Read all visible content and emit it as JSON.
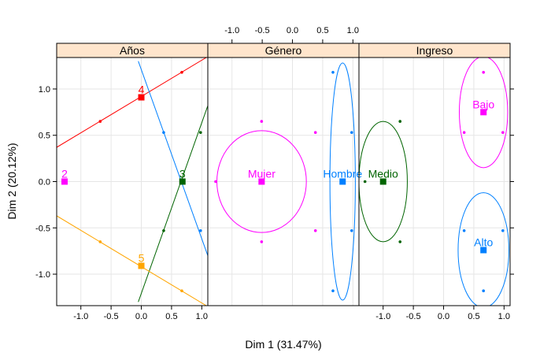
{
  "chart_data": {
    "type": "scatter",
    "xlabel": "Dim 1 (31.47%)",
    "ylabel": "Dim 2 (20.12%)",
    "xlim": [
      -1.4,
      1.1
    ],
    "ylim": [
      -1.34,
      1.34
    ],
    "x_ticks": [
      -1.0,
      -0.5,
      0.0,
      0.5,
      1.0
    ],
    "x_tick_labels": [
      "-1.0",
      "-0.5",
      "0.0",
      "0.5",
      "1.0"
    ],
    "y_ticks": [
      -1.0,
      -0.5,
      0.0,
      0.5,
      1.0
    ],
    "y_tick_labels": [
      "-1.0",
      "-0.5",
      "0.0",
      "0.5",
      "1.0"
    ],
    "grid": true,
    "colors": {
      "red": "#FF0000",
      "blue": "#0080FF",
      "green": "#006400",
      "magenta": "#FF00FF",
      "orange": "#FFA500",
      "strip": "#FFE5CC",
      "grid": "#E6E6E6"
    },
    "panels": [
      {
        "strip": "Años",
        "points": [
          {
            "label": "2",
            "x": -1.27,
            "y": 0.0,
            "color": "#FF00FF"
          },
          {
            "label": "4",
            "x": 0.0,
            "y": 0.91,
            "color": "#FF0000"
          },
          {
            "label": "3",
            "x": 0.68,
            "y": 0.0,
            "color": "#006400"
          },
          {
            "label": "5",
            "x": 0.0,
            "y": -0.91,
            "color": "#FFA500"
          }
        ],
        "lines": [
          {
            "color": "#FF0000",
            "from": [
              -1.4,
              0.37
            ],
            "to": [
              1.1,
              1.35
            ],
            "dots": [
              [
                -0.68,
                0.65
              ],
              [
                0.67,
                1.18
              ]
            ]
          },
          {
            "color": "#0080FF",
            "from": [
              -0.05,
              1.3
            ],
            "to": [
              1.1,
              -0.8
            ],
            "dots": [
              [
                0.37,
                0.53
              ],
              [
                0.98,
                -0.53
              ]
            ]
          },
          {
            "color": "#006400",
            "from": [
              -0.05,
              -1.3
            ],
            "to": [
              1.1,
              0.82
            ],
            "dots": [
              [
                0.37,
                -0.53
              ],
              [
                0.98,
                0.53
              ]
            ]
          },
          {
            "color": "#FFA500",
            "from": [
              -1.4,
              -0.37
            ],
            "to": [
              1.1,
              -1.35
            ],
            "dots": [
              [
                -0.68,
                -0.65
              ],
              [
                0.67,
                -1.18
              ]
            ]
          }
        ],
        "ellipses": []
      },
      {
        "strip": "Género",
        "points": [
          {
            "label": "Mujer",
            "x": -0.51,
            "y": 0.0,
            "color": "#FF00FF"
          },
          {
            "label": "Hombre",
            "x": 0.83,
            "y": 0.0,
            "color": "#0080FF"
          }
        ],
        "lines": [],
        "ellipses": [
          {
            "color": "#FF00FF",
            "cx": -0.51,
            "cy": 0.0,
            "rx": 0.74,
            "ry": 0.55,
            "dots": [
              [
                -1.27,
                0.0
              ],
              [
                -0.51,
                0.65
              ],
              [
                0.38,
                0.53
              ],
              [
                -0.51,
                -0.65
              ],
              [
                0.38,
                -0.53
              ]
            ]
          },
          {
            "color": "#0080FF",
            "cx": 0.83,
            "cy": 0.0,
            "rx": 0.21,
            "ry": 1.28,
            "dots": [
              [
                0.67,
                1.18
              ],
              [
                0.98,
                0.53
              ],
              [
                0.98,
                -0.53
              ],
              [
                0.67,
                -1.18
              ]
            ]
          }
        ]
      },
      {
        "strip": "Ingreso",
        "points": [
          {
            "label": "Medio",
            "x": -1.0,
            "y": 0.0,
            "color": "#006400"
          },
          {
            "label": "Bajo",
            "x": 0.66,
            "y": 0.75,
            "color": "#FF00FF"
          },
          {
            "label": "Alto",
            "x": 0.66,
            "y": -0.74,
            "color": "#0080FF"
          }
        ],
        "lines": [],
        "ellipses": [
          {
            "color": "#006400",
            "cx": -1.0,
            "cy": 0.0,
            "rx": 0.4,
            "ry": 0.65,
            "dots": [
              [
                -1.3,
                0.0
              ],
              [
                -0.72,
                0.65
              ],
              [
                -0.72,
                -0.65
              ]
            ]
          },
          {
            "color": "#FF00FF",
            "cx": 0.66,
            "cy": 0.75,
            "rx": 0.4,
            "ry": 0.6,
            "dots": [
              [
                0.66,
                1.18
              ],
              [
                0.34,
                0.53
              ],
              [
                0.98,
                0.53
              ]
            ]
          },
          {
            "color": "#0080FF",
            "cx": 0.66,
            "cy": -0.74,
            "rx": 0.42,
            "ry": 0.62,
            "dots": [
              [
                0.66,
                -1.18
              ],
              [
                0.34,
                -0.53
              ],
              [
                0.98,
                -0.53
              ]
            ]
          }
        ]
      }
    ]
  }
}
